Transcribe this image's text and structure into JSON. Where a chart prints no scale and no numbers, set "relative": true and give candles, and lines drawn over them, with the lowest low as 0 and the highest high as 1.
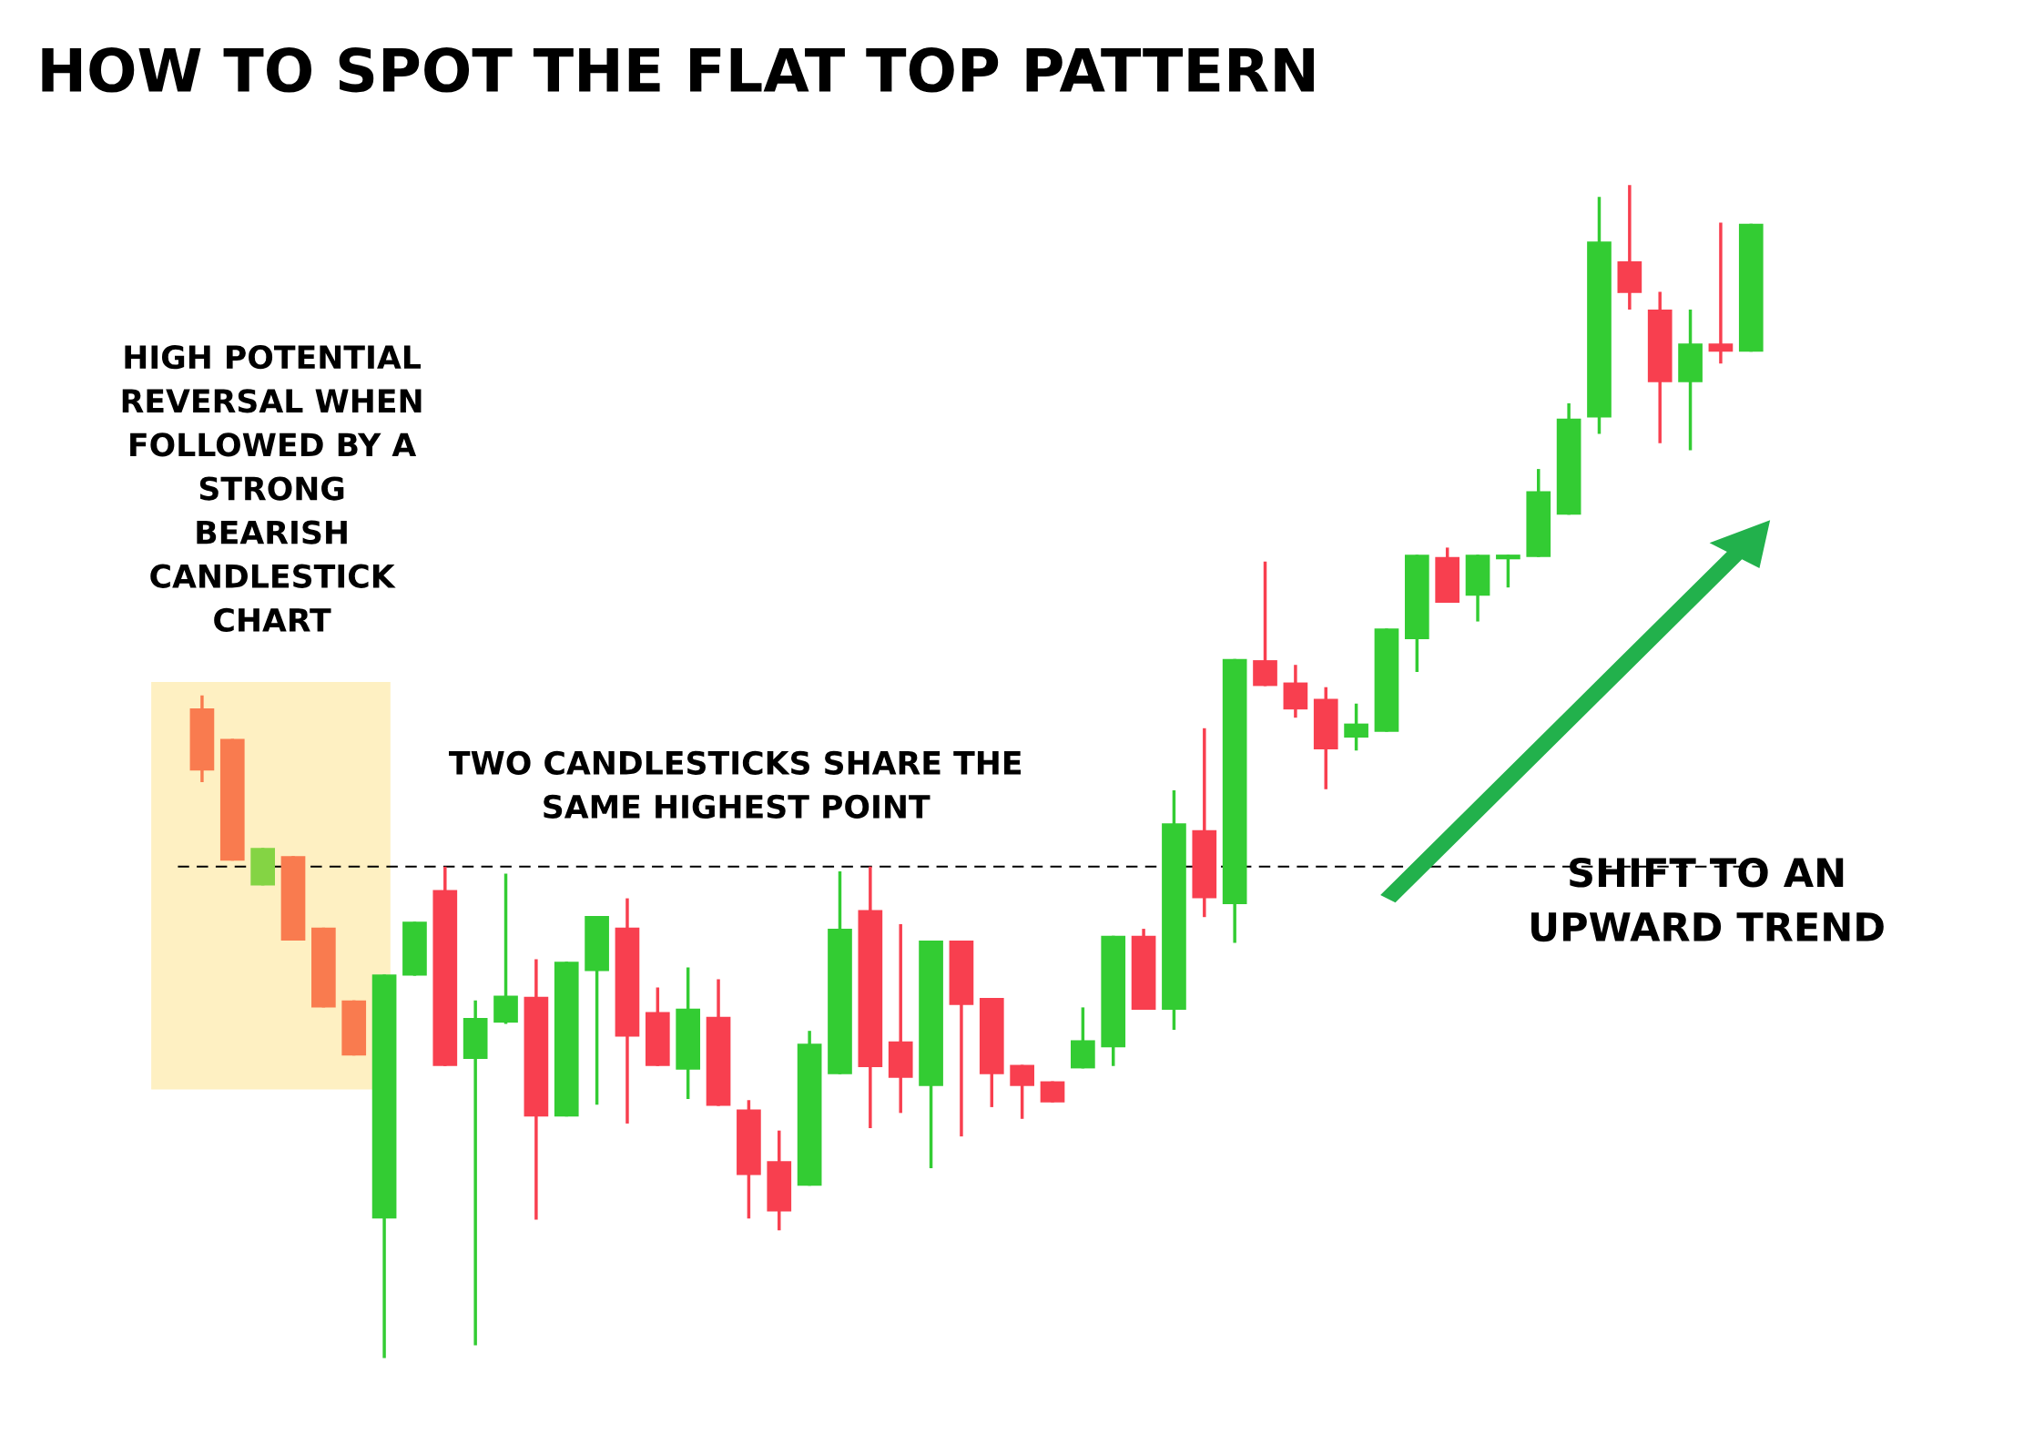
{
  "chart_data": {
    "type": "candlestick",
    "title": "HOW TO SPOT THE FLAT TOP PATTERN",
    "relative": true,
    "categories": [
      null,
      null,
      null,
      null,
      null,
      null,
      null,
      null,
      null,
      null,
      null,
      null,
      null,
      null,
      null,
      null,
      null,
      null,
      null,
      null,
      null,
      null,
      null,
      null,
      null,
      null,
      null,
      null,
      null,
      null,
      null,
      null,
      null,
      null,
      null,
      null,
      null,
      null,
      null,
      null,
      null,
      null,
      null,
      null,
      null,
      null,
      null,
      null,
      null,
      null,
      null,
      null
    ],
    "ohlc": [
      [
        0.554,
        0.565,
        0.491,
        0.501
      ],
      [
        0.528,
        0.528,
        0.424,
        0.424
      ],
      [
        0.403,
        0.435,
        0.403,
        0.435
      ],
      [
        0.428,
        0.428,
        0.356,
        0.356
      ],
      [
        0.367,
        0.367,
        0.299,
        0.299
      ],
      [
        0.305,
        0.305,
        0.258,
        0.258
      ],
      [
        0.119,
        0.327,
        0,
        0.327
      ],
      [
        0.326,
        0.372,
        0.326,
        0.372
      ],
      [
        0.399,
        0.419,
        0.249,
        0.249
      ],
      [
        0.255,
        0.305,
        0.011,
        0.29
      ],
      [
        0.286,
        0.413,
        0.285,
        0.309
      ],
      [
        0.308,
        0.34,
        0.118,
        0.206
      ],
      [
        0.206,
        0.338,
        0.206,
        0.338
      ],
      [
        0.33,
        0.377,
        0.216,
        0.377
      ],
      [
        0.367,
        0.392,
        0.2,
        0.274
      ],
      [
        0.295,
        0.316,
        0.249,
        0.249
      ],
      [
        0.246,
        0.333,
        0.221,
        0.298
      ],
      [
        0.291,
        0.323,
        0.215,
        0.215
      ],
      [
        0.212,
        0.22,
        0.119,
        0.156
      ],
      [
        0.168,
        0.194,
        0.109,
        0.125
      ],
      [
        0.147,
        0.279,
        0.147,
        0.268
      ],
      [
        0.242,
        0.415,
        0.242,
        0.366
      ],
      [
        0.382,
        0.419,
        0.196,
        0.248
      ],
      [
        0.27,
        0.37,
        0.209,
        0.239
      ],
      [
        0.232,
        0.356,
        0.162,
        0.356
      ],
      [
        0.356,
        0.356,
        0.189,
        0.301
      ],
      [
        0.307,
        0.307,
        0.214,
        0.242
      ],
      [
        0.25,
        0.25,
        0.204,
        0.232
      ],
      [
        0.236,
        0.236,
        0.218,
        0.218
      ],
      [
        0.247,
        0.299,
        0.247,
        0.271
      ],
      [
        0.265,
        0.36,
        0.249,
        0.36
      ],
      [
        0.36,
        0.366,
        0.297,
        0.297
      ],
      [
        0.297,
        0.484,
        0.28,
        0.456
      ],
      [
        0.45,
        0.537,
        0.376,
        0.392
      ],
      [
        0.387,
        0.596,
        0.354,
        0.596
      ],
      [
        0.595,
        0.679,
        0.573,
        0.573
      ],
      [
        0.576,
        0.591,
        0.546,
        0.553
      ],
      [
        0.562,
        0.572,
        0.485,
        0.519
      ],
      [
        0.529,
        0.558,
        0.518,
        0.541
      ],
      [
        0.534,
        0.622,
        0.534,
        0.622
      ],
      [
        0.613,
        0.685,
        0.585,
        0.685
      ],
      [
        0.683,
        0.691,
        0.644,
        0.644
      ],
      [
        0.65,
        0.685,
        0.628,
        0.685
      ],
      [
        0.681,
        0.685,
        0.657,
        0.685
      ],
      [
        0.683,
        0.758,
        0.683,
        0.739
      ],
      [
        0.719,
        0.814,
        0.719,
        0.801
      ],
      [
        0.802,
        0.99,
        0.788,
        0.952
      ],
      [
        0.935,
        1,
        0.894,
        0.908
      ],
      [
        0.894,
        0.909,
        0.78,
        0.832
      ],
      [
        0.832,
        0.894,
        0.774,
        0.865
      ],
      [
        0.865,
        0.968,
        0.848,
        0.858
      ],
      [
        0.858,
        0.967,
        0.858,
        0.967
      ]
    ],
    "colors": [
      "#f97b4f",
      "#f97b4f",
      "#84d444",
      "#f97b4f",
      "#f97b4f",
      "#f97b4f",
      "#33cc33",
      "#33cc33",
      "#f83f4f",
      "#33cc33",
      "#33cc33",
      "#f83f4f",
      "#33cc33",
      "#33cc33",
      "#f83f4f",
      "#f83f4f",
      "#33cc33",
      "#f83f4f",
      "#f83f4f",
      "#f83f4f",
      "#33cc33",
      "#33cc33",
      "#f83f4f",
      "#f83f4f",
      "#33cc33",
      "#f83f4f",
      "#f83f4f",
      "#f83f4f",
      "#f83f4f",
      "#33cc33",
      "#33cc33",
      "#f83f4f",
      "#33cc33",
      "#f83f4f",
      "#33cc33",
      "#f83f4f",
      "#f83f4f",
      "#f83f4f",
      "#33cc33",
      "#33cc33",
      "#33cc33",
      "#f83f4f",
      "#33cc33",
      "#33cc33",
      "#33cc33",
      "#33cc33",
      "#33cc33",
      "#f83f4f",
      "#f83f4f",
      "#33cc33",
      "#f83f4f",
      "#33cc33"
    ],
    "ref_lines": [
      {
        "axis": "y",
        "value": 0.419,
        "color": "#000000",
        "line_style": "dashed"
      }
    ],
    "annotations": [
      "HIGH POTENTIAL\nREVERSAL WHEN\nFOLLOWED BY A\nSTRONG\nBEARISH\nCANDLESTICK\nCHART",
      "TWO CANDLESTICKS SHARE THE\nSAME HIGHEST POINT",
      "SHIFT TO AN\nUPWARD TREND"
    ]
  }
}
